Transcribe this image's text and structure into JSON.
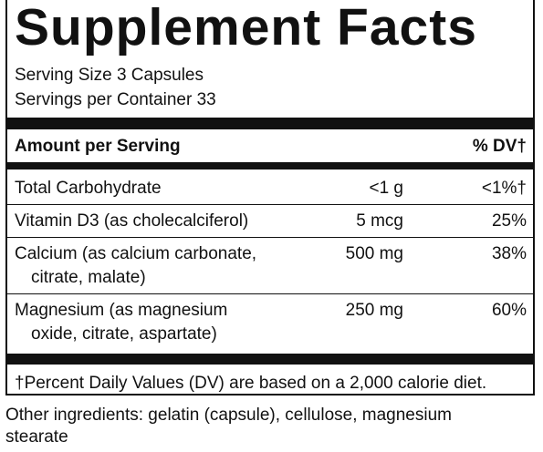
{
  "title": "Supplement Facts",
  "serving_size": "Serving Size 3 Capsules",
  "servings_per_container": "Servings per Container 33",
  "table": {
    "header": [
      "Amount per Serving",
      "% DV†"
    ],
    "rows": [
      [
        [
          "Total Carbohydrate"
        ],
        "<1 g",
        "<1%†"
      ],
      [
        [
          "Vitamin D3 (as cholecalciferol)"
        ],
        "5 mcg",
        "25%"
      ],
      [
        [
          "Calcium (as calcium carbonate,",
          "citrate, malate)"
        ],
        "500 mg",
        "38%"
      ],
      [
        [
          "Magnesium (as magnesium",
          "oxide, citrate, aspartate)"
        ],
        "250 mg",
        "60%"
      ]
    ]
  },
  "footnote": "†Percent Daily Values (DV) are based on a 2,000 calorie diet.",
  "other_ingredients": [
    "Other ingredients: gelatin (capsule), cellulose, magnesium",
    "stearate"
  ]
}
